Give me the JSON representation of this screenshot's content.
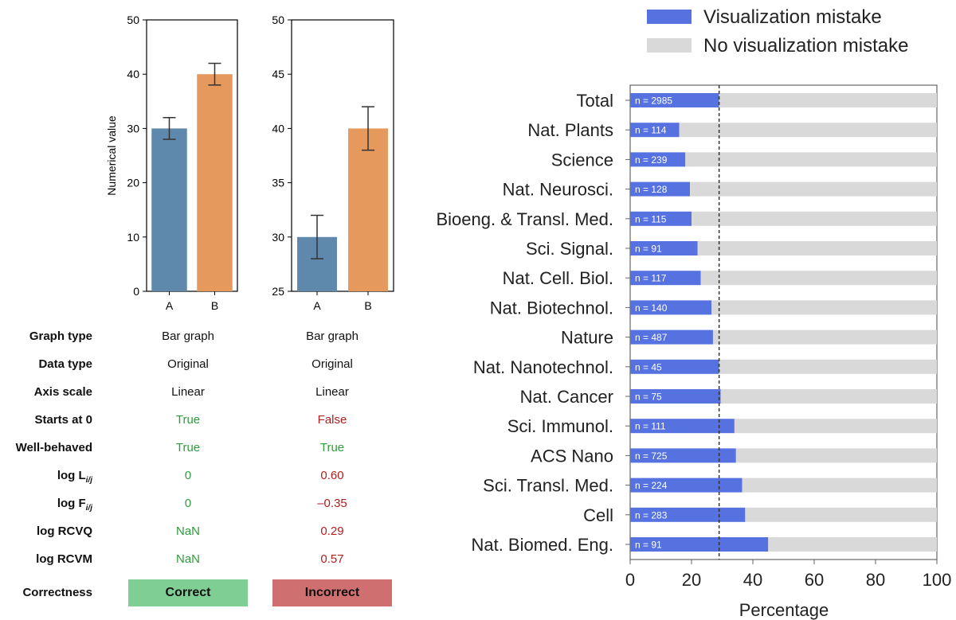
{
  "chart_data": [
    {
      "type": "bar",
      "categories": [
        "A",
        "B"
      ],
      "values": [
        30,
        40
      ],
      "errors": [
        2,
        2
      ],
      "colors": [
        "#5f88ad",
        "#e6995c"
      ],
      "ylim": [
        0,
        50
      ],
      "yticks": [
        0,
        10,
        20,
        30,
        40,
        50
      ],
      "ylabel": "Numerical value",
      "xlabel": ""
    },
    {
      "type": "bar",
      "categories": [
        "A",
        "B"
      ],
      "values": [
        30,
        40
      ],
      "errors": [
        2,
        2
      ],
      "colors": [
        "#5f88ad",
        "#e6995c"
      ],
      "ylim": [
        25,
        50
      ],
      "yticks": [
        25,
        30,
        35,
        40,
        45,
        50
      ],
      "ylabel": "",
      "xlabel": ""
    },
    {
      "type": "bar",
      "orientation": "horizontal",
      "stacked": true,
      "categories": [
        "Total",
        "Nat. Plants",
        "Science",
        "Nat. Neurosci.",
        "Bioeng. & Transl. Med.",
        "Sci. Signal.",
        "Nat. Cell. Biol.",
        "Nat. Biotechnol.",
        "Nature",
        "Nat. Nanotechnol.",
        "Nat. Cancer",
        "Sci. Immunol.",
        "ACS Nano",
        "Sci. Transl. Med.",
        "Cell",
        "Nat. Biomed. Eng."
      ],
      "n_labels": [
        "n = 2985",
        "n = 114",
        "n = 239",
        "n = 128",
        "n = 115",
        "n = 91",
        "n = 117",
        "n = 140",
        "n = 487",
        "n = 45",
        "n = 75",
        "n = 111",
        "n = 725",
        "n = 224",
        "n = 283",
        "n = 91"
      ],
      "series": [
        {
          "name": "Visualization mistake",
          "color": "#5572e0",
          "values": [
            29,
            16,
            18,
            19.5,
            20,
            22,
            23,
            26.5,
            27,
            29,
            29.5,
            34,
            34.5,
            36.5,
            37.5,
            45
          ]
        },
        {
          "name": "No visualization mistake",
          "color": "#d9d9d9",
          "values": [
            71,
            84,
            82,
            80.5,
            80,
            78,
            77,
            73.5,
            73,
            71,
            70.5,
            66,
            65.5,
            63.5,
            62.5,
            55
          ]
        }
      ],
      "reference_line": 29,
      "xlim": [
        0,
        100
      ],
      "xticks": [
        0,
        20,
        40,
        60,
        80,
        100
      ],
      "xlabel": "Percentage",
      "legend_position": "top"
    }
  ],
  "table": {
    "rows": [
      {
        "label": "Graph type",
        "sub": "",
        "v1": "Bar graph",
        "v2": "Bar graph",
        "s1": "neutral",
        "s2": "neutral"
      },
      {
        "label": "Data type",
        "sub": "",
        "v1": "Original",
        "v2": "Original",
        "s1": "neutral",
        "s2": "neutral"
      },
      {
        "label": "Axis scale",
        "sub": "",
        "v1": "Linear",
        "v2": "Linear",
        "s1": "neutral",
        "s2": "neutral"
      },
      {
        "label": "Starts at 0",
        "sub": "",
        "v1": "True",
        "v2": "False",
        "s1": "ok",
        "s2": "bad"
      },
      {
        "label": "Well-behaved",
        "sub": "",
        "v1": "True",
        "v2": "True",
        "s1": "ok",
        "s2": "ok"
      },
      {
        "label": "log L",
        "sub": "i/j",
        "v1": "0",
        "v2": "0.60",
        "s1": "ok",
        "s2": "bad"
      },
      {
        "label": "log F",
        "sub": "i/j",
        "v1": "0",
        "v2": "–0.35",
        "s1": "ok",
        "s2": "bad"
      },
      {
        "label": "log RCVQ",
        "sub": "",
        "v1": "NaN",
        "v2": "0.29",
        "s1": "ok",
        "s2": "bad"
      },
      {
        "label": "log RCVM",
        "sub": "",
        "v1": "NaN",
        "v2": "0.57",
        "s1": "ok",
        "s2": "bad"
      }
    ],
    "correctness": {
      "label": "Correctness",
      "v1": "Correct",
      "v2": "Incorrect",
      "color1": "#7fcf95",
      "color2": "#cf6f6f"
    }
  }
}
